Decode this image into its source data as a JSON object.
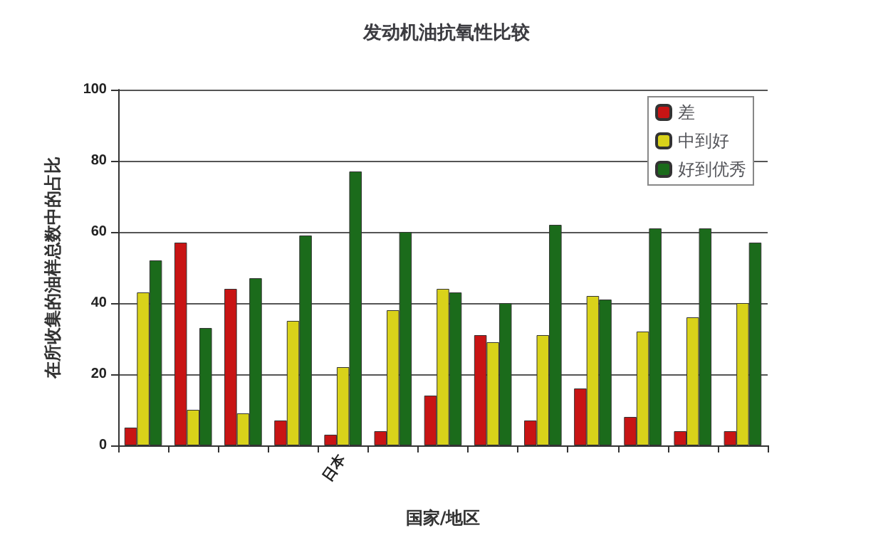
{
  "chart_data": {
    "type": "bar",
    "title": "发动机油抗氧性比较",
    "xlabel": "国家/地区",
    "ylabel": "在所收集的油样总数中的占比",
    "categories": [
      null,
      null,
      null,
      null,
      "日本",
      null,
      null,
      null,
      null,
      null,
      null,
      null,
      null
    ],
    "series": [
      {
        "name": "差",
        "color": "#c81414",
        "values": [
          5,
          57,
          44,
          7,
          3,
          4,
          14,
          31,
          7,
          16,
          8,
          4,
          4
        ]
      },
      {
        "name": "中到好",
        "color": "#d9d21a",
        "values": [
          43,
          10,
          9,
          35,
          22,
          38,
          44,
          29,
          31,
          42,
          32,
          36,
          40
        ]
      },
      {
        "name": "好到优秀",
        "color": "#1b6b1b",
        "values": [
          52,
          33,
          47,
          59,
          77,
          60,
          43,
          40,
          62,
          41,
          61,
          61,
          57
        ]
      }
    ],
    "ylim": [
      0,
      100
    ],
    "yticks": [
      0,
      20,
      40,
      60,
      80,
      100
    ],
    "grid": "y",
    "legend": "top right"
  }
}
